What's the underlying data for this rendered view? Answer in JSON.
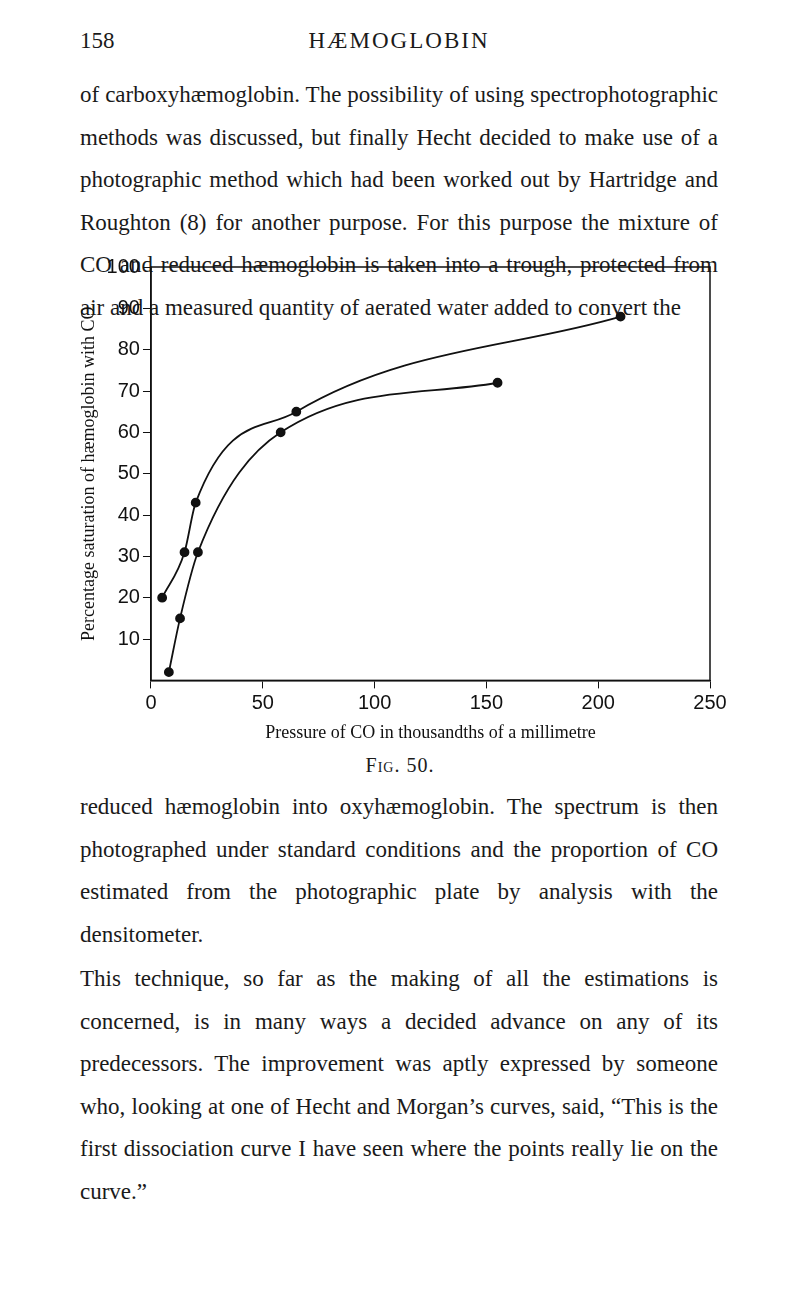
{
  "header": {
    "page_number": "158",
    "title": "HÆMOGLOBIN"
  },
  "paragraphs": [
    "of carboxyhæmoglobin. The possibility of using spectrophotographic methods was discussed, but finally Hecht decided to make use of a photographic method which had been worked out by Hartridge and Roughton (8) for another purpose. For this purpose the mixture of CO and reduced hæmoglobin is taken into a trough, protected from air and a measured quantity of aerated water added to convert the",
    "reduced hæmoglobin into oxyhæmoglobin. The spectrum is then photographed under standard conditions and the proportion of CO estimated from the photographic plate by analysis with the densitometer.",
    "This technique, so far as the making of all the estimations is concerned, is in many ways a decided advance on any of its predecessors. The improvement was aptly expressed by someone who, looking at one of Hecht and Morgan’s curves, said, “This is the first dissociation curve I have seen where the points really lie on the curve.”"
  ],
  "caption": "Fig. 50.",
  "chart_data": {
    "type": "line",
    "x_label": "Pressure of CO in thousandths of a millimetre",
    "y_label": "Percentage saturation of hæmoglobin with CO",
    "xlim": [
      0,
      250
    ],
    "xticks": [
      0,
      50,
      100,
      150,
      200,
      250
    ],
    "ylim": [
      0,
      100
    ],
    "yticks": [
      10,
      20,
      30,
      40,
      50,
      60,
      70,
      80,
      90,
      100
    ],
    "grid": false,
    "series": [
      {
        "color": "#111111",
        "marker": "circle",
        "line_style": "solid",
        "x": [
          5,
          15,
          20,
          65,
          210
        ],
        "values": [
          20,
          31,
          43,
          65,
          88
        ]
      },
      {
        "color": "#111111",
        "marker": "circle",
        "line_style": "solid",
        "x": [
          8,
          13,
          21,
          58,
          155
        ],
        "values": [
          2,
          15,
          31,
          60,
          72
        ]
      }
    ]
  }
}
